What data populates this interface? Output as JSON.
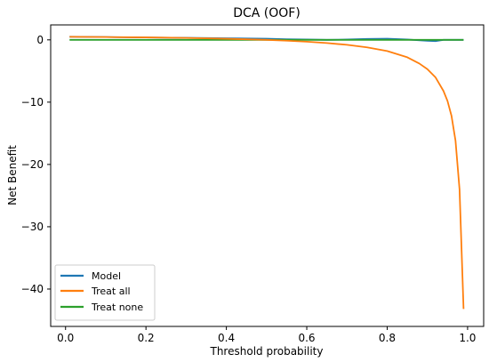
{
  "chart_data": {
    "type": "line",
    "title": "DCA (OOF)",
    "xlabel": "Threshold probability",
    "ylabel": "Net Benefit",
    "xlim": [
      -0.037,
      1.04
    ],
    "ylim": [
      -46,
      2.4
    ],
    "xticks": [
      0.0,
      0.2,
      0.4,
      0.6,
      0.8,
      1.0
    ],
    "xtick_labels": [
      "0.0",
      "0.2",
      "0.4",
      "0.6",
      "0.8",
      "1.0"
    ],
    "yticks": [
      0,
      -10,
      -20,
      -30,
      -40
    ],
    "ytick_labels": [
      "0",
      "−10",
      "−20",
      "−30",
      "−40"
    ],
    "grid": false,
    "legend": {
      "position": "bottom-left"
    },
    "series": [
      {
        "name": "Model",
        "color": "#1f77b4",
        "x": [
          0.01,
          0.1,
          0.2,
          0.3,
          0.4,
          0.5,
          0.55,
          0.6,
          0.65,
          0.7,
          0.75,
          0.8,
          0.85,
          0.9,
          0.92,
          0.94,
          0.99
        ],
        "y": [
          0.5,
          0.45,
          0.38,
          0.32,
          0.25,
          0.18,
          0.1,
          0.05,
          0.0,
          0.05,
          0.15,
          0.18,
          0.05,
          -0.15,
          -0.2,
          0.0,
          0.0
        ]
      },
      {
        "name": "Treat all",
        "color": "#ff7f0e",
        "x": [
          0.01,
          0.1,
          0.2,
          0.3,
          0.4,
          0.5,
          0.55,
          0.6,
          0.65,
          0.7,
          0.75,
          0.8,
          0.85,
          0.88,
          0.9,
          0.92,
          0.94,
          0.95,
          0.96,
          0.97,
          0.98,
          0.99
        ],
        "y": [
          0.49,
          0.45,
          0.39,
          0.31,
          0.18,
          0.0,
          -0.13,
          -0.3,
          -0.51,
          -0.8,
          -1.2,
          -1.8,
          -2.8,
          -3.8,
          -4.7,
          -6.0,
          -8.2,
          -9.8,
          -12.2,
          -16.2,
          -24.0,
          -43.2
        ]
      },
      {
        "name": "Treat none",
        "color": "#2ca02c",
        "x": [
          0.01,
          0.99
        ],
        "y": [
          0,
          0
        ]
      }
    ]
  }
}
